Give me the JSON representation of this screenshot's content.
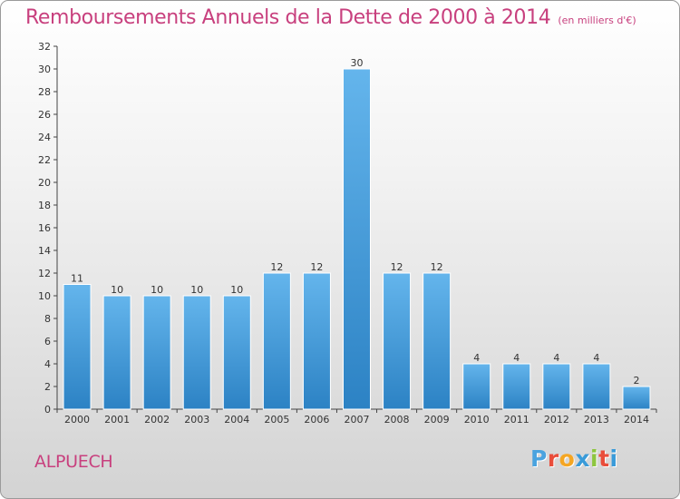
{
  "header": {
    "title": "Remboursements Annuels de la Dette de 2000 à 2014",
    "unit": "(en milliers d'€)"
  },
  "commune": "ALPUECH",
  "brand": {
    "letters": [
      "P",
      "r",
      "o",
      "x",
      "i",
      "t",
      "i"
    ],
    "colors": [
      "#4aa3df",
      "#e94d3b",
      "#f5a623",
      "#3a9bd9",
      "#8dc63f",
      "#e94d3b",
      "#3a9bd9"
    ]
  },
  "colors": {
    "bar_light": "#64b5ec",
    "bar_dark": "#2c82c4",
    "title": "#c8407e"
  },
  "chart_data": {
    "type": "bar",
    "categories": [
      "2000",
      "2001",
      "2002",
      "2003",
      "2004",
      "2005",
      "2006",
      "2007",
      "2008",
      "2009",
      "2010",
      "2011",
      "2012",
      "2013",
      "2014"
    ],
    "values": [
      11,
      10,
      10,
      10,
      10,
      12,
      12,
      30,
      12,
      12,
      4,
      4,
      4,
      4,
      2
    ],
    "data_labels": [
      "11",
      "10",
      "10",
      "10",
      "10",
      "12",
      "12",
      "30",
      "12",
      "12",
      "4",
      "4",
      "4",
      "4",
      "2"
    ],
    "ylim": [
      0,
      32
    ],
    "yticks": [
      0,
      2,
      4,
      6,
      8,
      10,
      12,
      14,
      16,
      18,
      20,
      22,
      24,
      26,
      28,
      30,
      32
    ],
    "grid": false,
    "xlabel": "",
    "ylabel": ""
  }
}
